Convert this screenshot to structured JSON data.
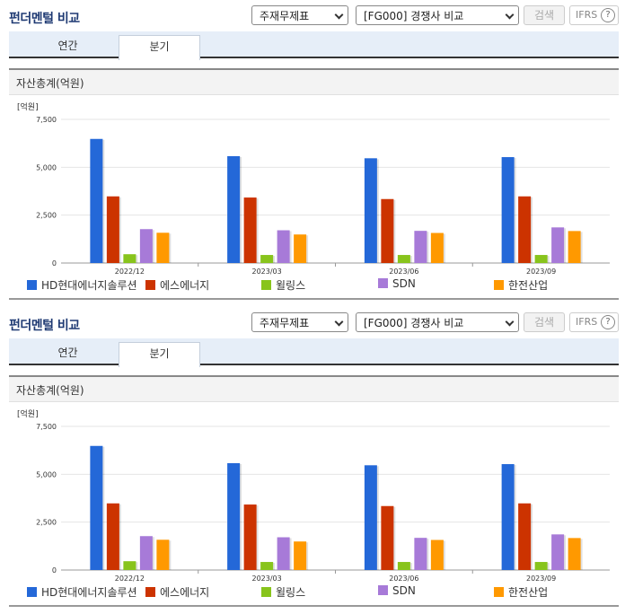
{
  "panels": [
    {
      "title": "펀더멘털 비교",
      "item_select": "주재무제표",
      "company_select": "[FG000] 경쟁사 비교",
      "search_label": "검색",
      "ifrs_label": "IFRS",
      "help_glyph": "?",
      "tabs": [
        {
          "label": "연간"
        },
        {
          "label": "분기"
        }
      ],
      "section_title": "자산총계(억원)",
      "chart_data": {
        "type": "bar",
        "unit_label": "[억원]",
        "categories": [
          "2022/12",
          "2023/03",
          "2023/06",
          "2023/09"
        ],
        "ylim": [
          0,
          7500
        ],
        "yticks": [
          "0",
          "2,500",
          "5,000",
          "7,500"
        ],
        "ytick_values": [
          0,
          2500,
          5000,
          7500
        ],
        "series": [
          {
            "name": "HD현대에너지솔루션",
            "color": "#2468d8",
            "values": [
              6480,
              5580,
              5470,
              5530
            ]
          },
          {
            "name": "에스에너지",
            "color": "#cc3300",
            "values": [
              3480,
              3420,
              3340,
              3480
            ]
          },
          {
            "name": "윌링스",
            "color": "#88c41c",
            "values": [
              460,
              420,
              420,
              420
            ]
          },
          {
            "name": "SDN",
            "color": "#a77ad8",
            "values": [
              1770,
              1710,
              1680,
              1860
            ]
          },
          {
            "name": "한전산업",
            "color": "#ff9900",
            "values": [
              1580,
              1490,
              1570,
              1670
            ]
          }
        ]
      }
    },
    {
      "title": "펀더멘털 비교",
      "item_select": "주재무제표",
      "company_select": "[FG000] 경쟁사 비교",
      "search_label": "검색",
      "ifrs_label": "IFRS",
      "help_glyph": "?",
      "tabs": [
        {
          "label": "연간"
        },
        {
          "label": "분기"
        }
      ],
      "section_title": "자산총계(억원)",
      "chart_data": {
        "type": "bar",
        "unit_label": "[억원]",
        "categories": [
          "2022/12",
          "2023/03",
          "2023/06",
          "2023/09"
        ],
        "ylim": [
          0,
          7500
        ],
        "yticks": [
          "0",
          "2,500",
          "5,000",
          "7,500"
        ],
        "ytick_values": [
          0,
          2500,
          5000,
          7500
        ],
        "series": [
          {
            "name": "HD현대에너지솔루션",
            "color": "#2468d8",
            "values": [
              6480,
              5580,
              5470,
              5530
            ]
          },
          {
            "name": "에스에너지",
            "color": "#cc3300",
            "values": [
              3480,
              3420,
              3340,
              3480
            ]
          },
          {
            "name": "윌링스",
            "color": "#88c41c",
            "values": [
              460,
              420,
              420,
              420
            ]
          },
          {
            "name": "SDN",
            "color": "#a77ad8",
            "values": [
              1770,
              1710,
              1680,
              1860
            ]
          },
          {
            "name": "한전산업",
            "color": "#ff9900",
            "values": [
              1580,
              1490,
              1570,
              1670
            ]
          }
        ]
      }
    }
  ]
}
